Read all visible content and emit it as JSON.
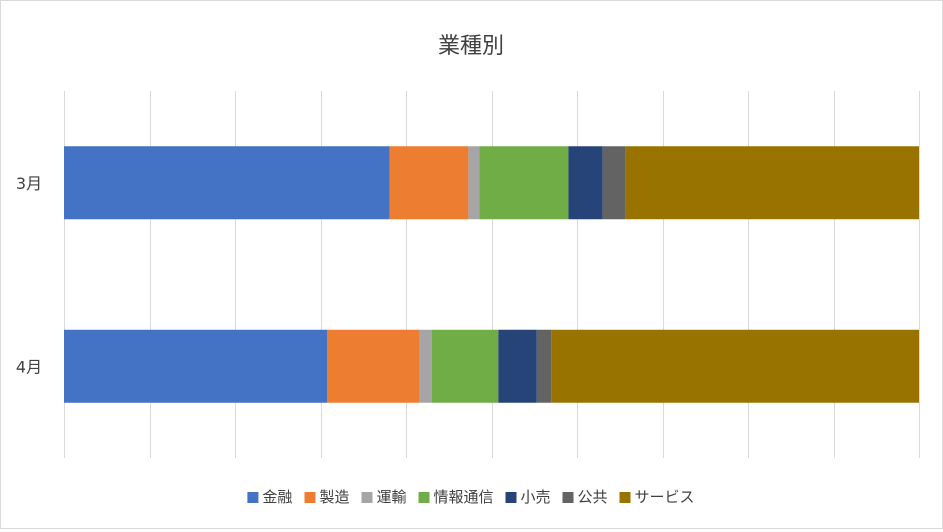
{
  "chart_data": {
    "type": "bar",
    "orientation": "horizontal",
    "stacked": "percent",
    "title": "業種別",
    "categories": [
      "3月",
      "4月"
    ],
    "xlim": [
      0,
      100
    ],
    "grid": true,
    "legend_position": "bottom",
    "series": [
      {
        "name": "金融",
        "color": "#4472C4",
        "values": [
          38.1,
          30.8
        ]
      },
      {
        "name": "製造",
        "color": "#ED7D31",
        "values": [
          9.2,
          10.8
        ]
      },
      {
        "name": "運輸",
        "color": "#A5A5A5",
        "values": [
          1.3,
          1.4
        ]
      },
      {
        "name": "情報通信",
        "color": "#70AD47",
        "values": [
          10.4,
          7.8
        ]
      },
      {
        "name": "小売",
        "color": "#264478",
        "values": [
          4.0,
          4.5
        ]
      },
      {
        "name": "公共",
        "color": "#636363",
        "values": [
          2.7,
          1.7
        ]
      },
      {
        "name": "サービス",
        "color": "#997300",
        "values": [
          34.3,
          43.0
        ]
      }
    ]
  }
}
